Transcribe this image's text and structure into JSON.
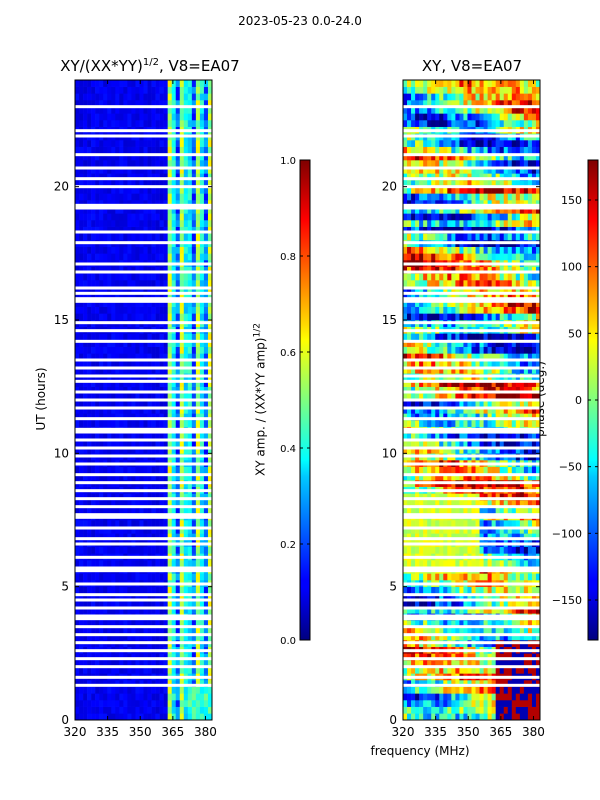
{
  "figure_title": "2023-05-23 0.0-24.0",
  "chart_data": [
    {
      "type": "heatmap",
      "title": "XY/(XX*YY)^{1/2}, V8=EA07",
      "title_main": "XY/(XX*YY)",
      "title_sup": "1/2",
      "title_rest": ", V8=EA07",
      "xlabel": "",
      "ylabel": "UT (hours)",
      "xlim": [
        320,
        383
      ],
      "ylim": [
        0,
        24
      ],
      "xticks": [
        320,
        335,
        350,
        365,
        380
      ],
      "yticks": [
        0,
        5,
        10,
        15,
        20
      ],
      "colorbar": {
        "label_main": "XY amp. / (XX*YY amp)",
        "label_sup": "1/2",
        "range": [
          0.0,
          1.0
        ],
        "ticks": [
          0.0,
          0.2,
          0.4,
          0.6,
          0.8,
          1.0
        ],
        "tick_labels": [
          "0.0",
          "0.2",
          "0.4",
          "0.6",
          "0.8",
          "1.0"
        ],
        "colormap": "jet"
      },
      "flagged_hours": [
        23.0,
        22.1,
        21.9,
        21.2,
        20.7,
        20.3,
        20.0,
        19.3,
        19.2,
        18.3,
        17.9,
        17.1,
        16.8,
        16.2,
        16.0,
        15.8,
        15.7,
        14.9,
        14.6,
        14.2,
        13.5,
        13.2,
        12.9,
        12.7,
        12.3,
        12.0,
        11.7,
        11.3,
        10.9,
        10.8,
        10.5,
        10.2,
        9.9,
        9.6,
        9.2,
        8.9,
        8.6,
        8.3,
        8.0,
        7.7,
        7.6,
        7.2,
        6.8,
        6.6,
        6.1,
        5.7,
        5.6,
        5.1,
        4.7,
        4.5,
        4.2,
        3.9,
        3.8,
        3.5,
        3.2,
        2.9,
        2.6,
        2.3,
        2.0,
        1.6,
        1.3
      ]
    },
    {
      "type": "heatmap",
      "title": "XY, V8=EA07",
      "xlabel": "frequency (MHz)",
      "ylabel": "",
      "xlim": [
        320,
        383
      ],
      "ylim": [
        0,
        24
      ],
      "xticks": [
        320,
        335,
        350,
        365,
        380
      ],
      "yticks": [
        0,
        5,
        10,
        15,
        20
      ],
      "colorbar": {
        "label": "phase (deg.)",
        "range": [
          -180,
          180
        ],
        "ticks": [
          -150,
          -100,
          -50,
          0,
          50,
          100,
          150
        ],
        "tick_labels": [
          "−150",
          "−100",
          "−50",
          "0",
          "50",
          "100",
          "150"
        ],
        "colormap": "jet"
      },
      "flagged_hours": [
        23.0,
        22.1,
        21.9,
        21.2,
        20.7,
        20.3,
        20.0,
        19.3,
        19.2,
        18.3,
        17.9,
        17.1,
        16.8,
        16.2,
        16.0,
        15.8,
        15.7,
        14.9,
        14.6,
        14.2,
        13.5,
        13.2,
        12.9,
        12.7,
        12.3,
        12.0,
        11.7,
        11.3,
        10.9,
        10.8,
        10.5,
        10.2,
        9.9,
        9.6,
        9.2,
        8.9,
        8.6,
        8.3,
        8.0,
        7.7,
        7.6,
        7.2,
        6.8,
        6.6,
        6.1,
        5.7,
        5.6,
        5.1,
        4.7,
        4.5,
        4.2,
        3.9,
        3.8,
        3.5,
        3.2,
        2.9,
        2.6,
        2.3,
        2.0,
        1.6,
        1.3
      ]
    }
  ]
}
